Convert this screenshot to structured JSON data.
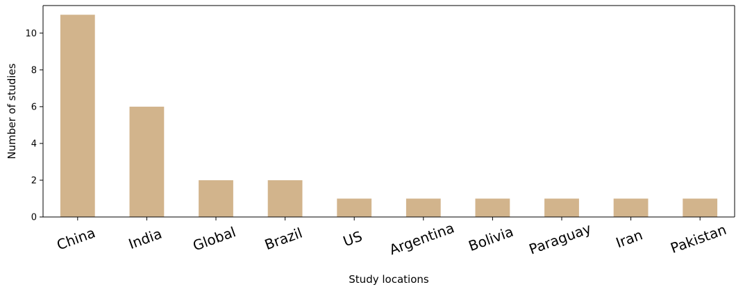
{
  "chart_data": {
    "type": "bar",
    "categories": [
      "China",
      "India",
      "Global",
      "Brazil",
      "US",
      "Argentina",
      "Bolivia",
      "Paraguay",
      "Iran",
      "Pakistan"
    ],
    "values": [
      11,
      6,
      2,
      2,
      1,
      1,
      1,
      1,
      1,
      1
    ],
    "xlabel": "Study locations",
    "ylabel": "Number of studies",
    "ylim": [
      0,
      11.5
    ],
    "yticks": [
      0,
      2,
      4,
      6,
      8,
      10
    ],
    "grid": false,
    "legend": "none",
    "bar_color": "#d2b48c",
    "xtick_rotation_deg": -20
  }
}
